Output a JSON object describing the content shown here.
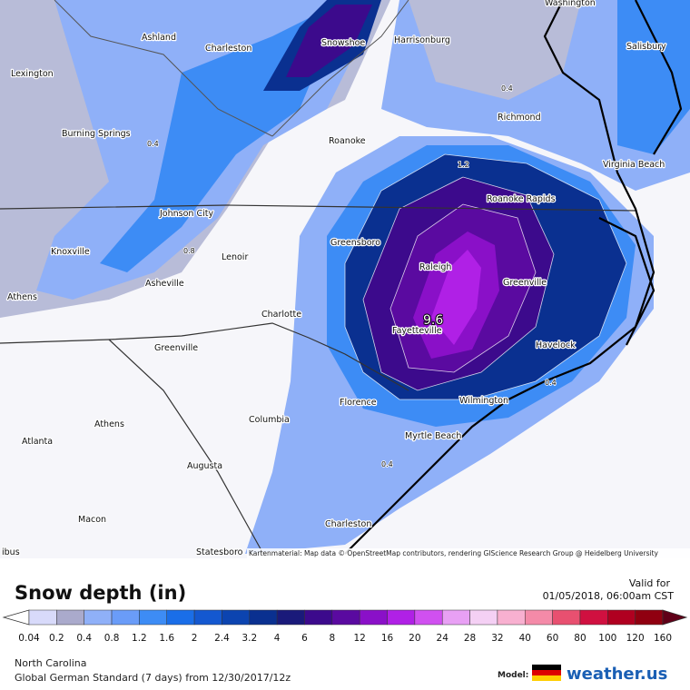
{
  "map": {
    "cities": [
      "Washington",
      "Ashland",
      "Charleston",
      "Snowshoe",
      "Harrisonburg",
      "Lexington",
      "Salisbury",
      "Richmond",
      "Burning Springs",
      "Roanoke",
      "Virginia Beach",
      "Roanoke Rapids",
      "Johnson City",
      "Greensboro",
      "Knoxville",
      "Lenoir",
      "Raleigh",
      "Asheville",
      "Greenville",
      "Athens",
      "Charlotte",
      "Fayetteville",
      "Havelock",
      "Greenville",
      "Florence",
      "Wilmington",
      "Athens",
      "Columbia",
      "Atlanta",
      "Myrtle Beach",
      "Augusta",
      "Macon",
      "Charleston",
      "Statesboro",
      "ibus"
    ],
    "contour_labels": [
      "0.4",
      "0.4",
      "0.8",
      "1.2",
      "9.6",
      "0.4",
      "0.4"
    ],
    "attribution": "Kartenmaterial: Map data © OpenStreetMap contributors, rendering GIScience Research Group @ Heidelberg University"
  },
  "legend": {
    "title": "Snow depth (in)",
    "valid_label": "Valid for",
    "valid_time": "01/05/2018, 06:00am CST",
    "ticks": [
      "0.04",
      "0.2",
      "0.4",
      "0.8",
      "1.2",
      "1.6",
      "2",
      "2.4",
      "3.2",
      "4",
      "6",
      "8",
      "12",
      "16",
      "20",
      "24",
      "28",
      "32",
      "40",
      "60",
      "80",
      "100",
      "120",
      "160"
    ],
    "colors": [
      "#ffffff",
      "#d8dafa",
      "#aaaacc",
      "#8fb0f8",
      "#6a9cf8",
      "#3d8cf5",
      "#1a6ee8",
      "#1458d0",
      "#0c44b0",
      "#0a3090",
      "#1a1a7a",
      "#3c0a8c",
      "#5a0aa0",
      "#8a10c8",
      "#b020e6",
      "#d050f0",
      "#e8a0f4",
      "#f4d0f4",
      "#f8b0d0",
      "#f48aa8",
      "#e85070",
      "#d01040",
      "#b00020",
      "#900010",
      "#600018"
    ]
  },
  "footer": {
    "region": "North Carolina",
    "run": "Global German Standard (7 days) from 12/30/2017/12z",
    "model_label": "Model:",
    "brand": "weather.us"
  }
}
